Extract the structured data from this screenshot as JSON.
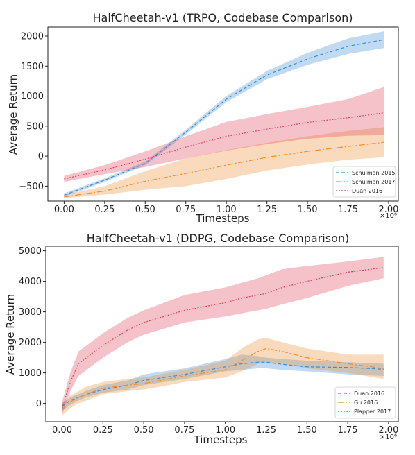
{
  "chart_data": [
    {
      "type": "line",
      "title": "HalfCheetah-v1 (TRPO, Codebase Comparison)",
      "xlabel": "Timesteps",
      "ylabel": "Average Return",
      "x_exponent_label": "×10⁶",
      "xlim": [
        -0.1,
        2.06
      ],
      "ylim": [
        -750,
        2150
      ],
      "xticks": [
        0,
        0.25,
        0.5,
        0.75,
        1,
        1.25,
        1.5,
        1.75,
        2
      ],
      "xtick_labels": [
        "0.00",
        "0.25",
        "0.50",
        "0.75",
        "1.00",
        "1.25",
        "1.50",
        "1.75",
        "2.00"
      ],
      "yticks": [
        -500,
        0,
        500,
        1000,
        1500,
        2000
      ],
      "ytick_labels": [
        "−500",
        "0",
        "500",
        "1000",
        "1500",
        "2000"
      ],
      "legend_position": "lower-right",
      "x": [
        0,
        0.25,
        0.5,
        0.75,
        1.0,
        1.25,
        1.5,
        1.75,
        1.97
      ],
      "series": [
        {
          "name": "Schulman 2015",
          "color": "#3b8bd4",
          "dash": "5,3",
          "values": [
            -650,
            -400,
            -120,
            400,
            950,
            1350,
            1620,
            1830,
            1940
          ],
          "upper": [
            -620,
            -370,
            -90,
            440,
            1000,
            1420,
            1720,
            1960,
            2080
          ],
          "lower": [
            -680,
            -430,
            -150,
            360,
            900,
            1280,
            1520,
            1700,
            1800
          ]
        },
        {
          "name": "Schulman 2017",
          "color": "#f08c2e",
          "dash": "8,3,2,3",
          "values": [
            -680,
            -580,
            -420,
            -290,
            -150,
            -20,
            80,
            160,
            230
          ],
          "upper": [
            -650,
            -500,
            -250,
            -40,
            100,
            220,
            330,
            420,
            480
          ],
          "lower": [
            -700,
            -640,
            -560,
            -500,
            -380,
            -240,
            -140,
            -60,
            -20
          ]
        },
        {
          "name": "Duan 2016",
          "color": "#e0405a",
          "dash": "2,2",
          "values": [
            -380,
            -230,
            -50,
            150,
            330,
            450,
            560,
            640,
            720
          ],
          "upper": [
            -330,
            -150,
            80,
            330,
            570,
            700,
            820,
            950,
            1150
          ],
          "lower": [
            -430,
            -300,
            -180,
            -40,
            90,
            200,
            290,
            340,
            350
          ]
        }
      ]
    },
    {
      "type": "line",
      "title": "HalfCheetah-v1 (DDPG, Codebase Comparison)",
      "xlabel": "Timesteps",
      "ylabel": "Average Return",
      "x_exponent_label": "×10⁶",
      "xlim": [
        -0.1,
        2.06
      ],
      "ylim": [
        -600,
        5150
      ],
      "xticks": [
        0,
        0.25,
        0.5,
        0.75,
        1,
        1.25,
        1.5,
        1.75,
        2
      ],
      "xtick_labels": [
        "0.00",
        "0.25",
        "0.50",
        "0.75",
        "1.00",
        "1.25",
        "1.50",
        "1.75",
        "2.00"
      ],
      "yticks": [
        0,
        1000,
        2000,
        3000,
        4000,
        5000
      ],
      "ytick_labels": [
        "0",
        "1000",
        "2000",
        "3000",
        "4000",
        "5000"
      ],
      "legend_position": "lower-right",
      "x": [
        0,
        0.05,
        0.1,
        0.15,
        0.25,
        0.4,
        0.5,
        0.75,
        1.0,
        1.1,
        1.2,
        1.25,
        1.35,
        1.5,
        1.75,
        1.97
      ],
      "series": [
        {
          "name": "Duan 2016",
          "color": "#3b8bd4",
          "dash": "5,3",
          "values": [
            -100,
            100,
            200,
            300,
            450,
            600,
            750,
            950,
            1200,
            1300,
            1350,
            1350,
            1280,
            1200,
            1180,
            1120
          ],
          "upper": [
            0,
            200,
            300,
            420,
            600,
            750,
            950,
            1150,
            1450,
            1600,
            1550,
            1500,
            1450,
            1400,
            1350,
            1300
          ],
          "lower": [
            -250,
            -50,
            100,
            200,
            350,
            450,
            600,
            800,
            1050,
            1100,
            1150,
            1150,
            1100,
            1050,
            950,
            900
          ]
        },
        {
          "name": "Gu 2016",
          "color": "#f08c2e",
          "dash": "8,3,2,3",
          "values": [
            -200,
            50,
            200,
            300,
            500,
            600,
            650,
            900,
            1100,
            1400,
            1700,
            1800,
            1700,
            1500,
            1300,
            1150
          ],
          "upper": [
            0,
            250,
            400,
            550,
            700,
            800,
            850,
            1100,
            1400,
            1800,
            2100,
            2150,
            2000,
            1800,
            1600,
            1600
          ],
          "lower": [
            -400,
            -150,
            0,
            100,
            300,
            400,
            450,
            700,
            850,
            1050,
            1300,
            1350,
            1300,
            1150,
            1000,
            800
          ]
        },
        {
          "name": "Plapper 2017",
          "color": "#e0405a",
          "dash": "2,2",
          "values": [
            -150,
            700,
            1300,
            1500,
            1900,
            2400,
            2650,
            3050,
            3300,
            3450,
            3550,
            3600,
            3800,
            4000,
            4300,
            4450
          ],
          "upper": [
            50,
            1000,
            1700,
            1900,
            2300,
            2800,
            3050,
            3550,
            3800,
            3950,
            4100,
            4200,
            4400,
            4500,
            4650,
            4800
          ],
          "lower": [
            -350,
            400,
            900,
            1100,
            1500,
            2000,
            2250,
            2650,
            2850,
            2950,
            3050,
            3100,
            3250,
            3450,
            3850,
            4100
          ]
        }
      ]
    }
  ]
}
